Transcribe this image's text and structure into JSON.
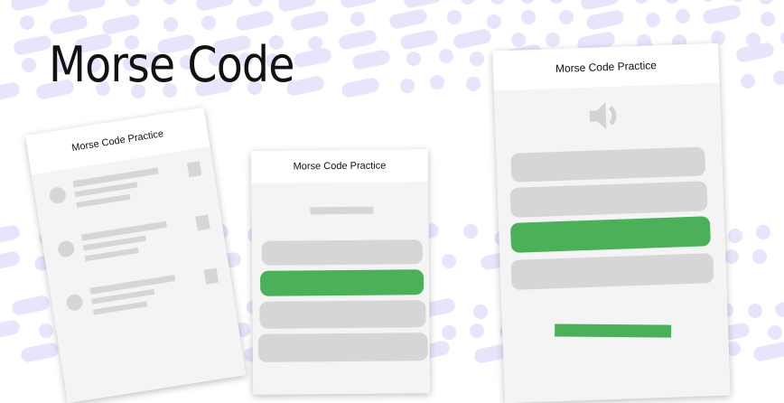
{
  "headline": "Morse Code",
  "screens": [
    {
      "header": "Morse Code Practice",
      "type": "list"
    },
    {
      "header": "Morse Code Practice",
      "type": "quiz",
      "selected_option": 2
    },
    {
      "header": "Morse Code Practice",
      "type": "audio",
      "icon": "speaker-icon",
      "selected_option": 3
    }
  ],
  "colors": {
    "accent": "#4caf5a",
    "pattern": "#e8e4fc",
    "placeholder": "#d6d6d6"
  }
}
